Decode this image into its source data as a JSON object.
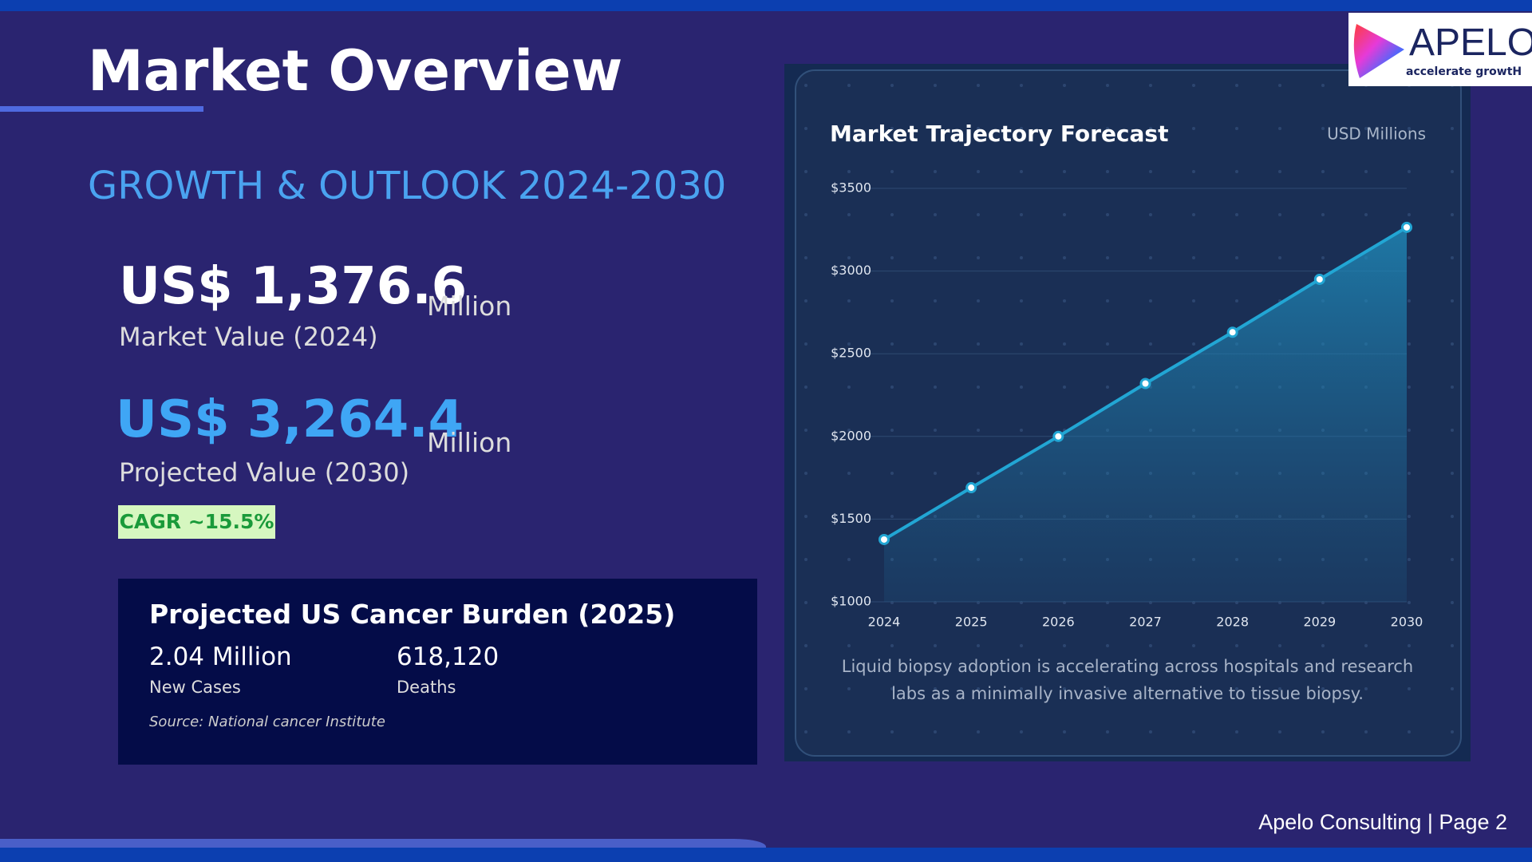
{
  "header": {
    "title": "Market Overview",
    "subtitle": "GROWTH & OUTLOOK 2024-2030"
  },
  "metrics": [
    {
      "value": "US$ 1,376.6",
      "unit": "Million",
      "label": "Market Value (2024)"
    },
    {
      "value": "US$ 3,264.4",
      "unit": "Million",
      "label": "Projected Value (2030)"
    }
  ],
  "cagr": "CAGR ~15.5%",
  "burden": {
    "title": "Projected US Cancer Burden (2025)",
    "stats": [
      {
        "value": "2.04 Million",
        "label": "New Cases"
      },
      {
        "value": "618,120",
        "label": "Deaths"
      }
    ],
    "source": "Source: National cancer Institute"
  },
  "chart_data": {
    "type": "line",
    "title": "Market Trajectory Forecast",
    "unit_label": "USD Millions",
    "categories": [
      "2024",
      "2025",
      "2026",
      "2027",
      "2028",
      "2029",
      "2030"
    ],
    "values": [
      1376.6,
      1690,
      2000,
      2320,
      2630,
      2950,
      3264.4
    ],
    "color": "#22a6d4",
    "ylim": [
      1000,
      3500
    ],
    "yticks": [
      {
        "value": 1000,
        "label": "$1000"
      },
      {
        "value": 1500,
        "label": "$1500"
      },
      {
        "value": 2000,
        "label": "$2000"
      },
      {
        "value": 2500,
        "label": "$2500"
      },
      {
        "value": 3000,
        "label": "$3000"
      },
      {
        "value": 3500,
        "label": "$3500"
      }
    ],
    "grid": true,
    "caption": "Liquid biopsy adoption is accelerating across hospitals and research labs as a minimally invasive alternative to tissue biopsy."
  },
  "logo": {
    "name": "APELO",
    "tagline": "accelerate growtH"
  },
  "footer": "Apelo Consulting | Page 2"
}
